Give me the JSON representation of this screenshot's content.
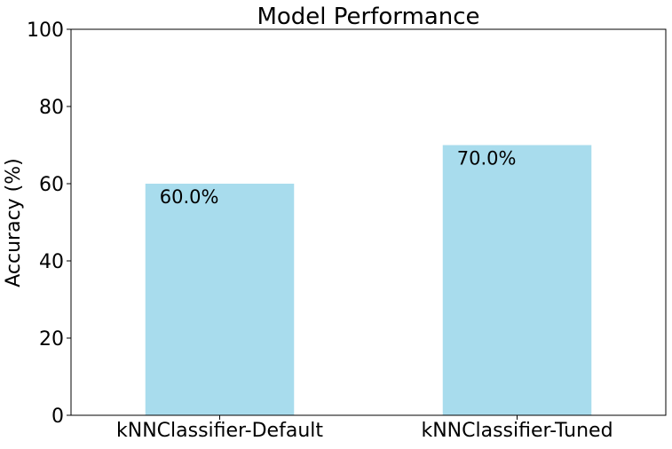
{
  "chart_data": {
    "type": "bar",
    "title": "Model Performance",
    "xlabel": "",
    "ylabel": "Accuracy (%)",
    "categories": [
      "kNNClassifier-Default",
      "kNNClassifier-Tuned"
    ],
    "values": [
      60.0,
      70.0
    ],
    "value_labels": [
      "60.0%",
      "70.0%"
    ],
    "ylim": [
      0,
      100
    ],
    "yticks": [
      0,
      20,
      40,
      60,
      80,
      100
    ],
    "bar_color": "#a8dced",
    "grid": false,
    "legend": "none"
  }
}
